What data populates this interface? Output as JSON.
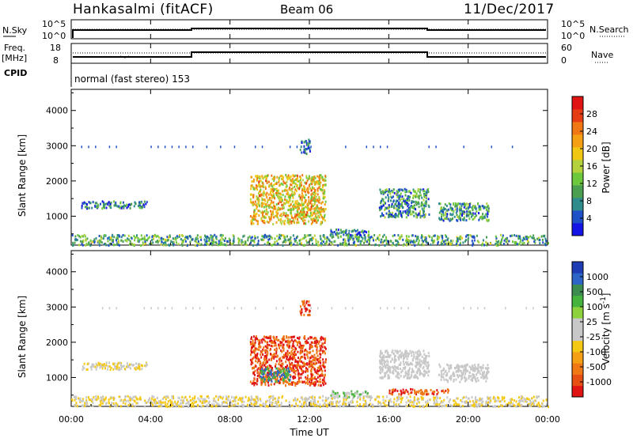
{
  "header": {
    "station": "Hankasalmi (fitACF)",
    "beam": "Beam 06",
    "date": "11/Dec/2017"
  },
  "top_panels": {
    "nsky_label": "N.Sky",
    "nsky_ticks": [
      "10^5",
      "10^0"
    ],
    "nsearch_label": "N.Search",
    "nsearch_ticks": [
      "10^5",
      "10^0"
    ],
    "freq_label": "Freq.",
    "freq_unit": "[MHz]",
    "freq_ticks": [
      "18",
      "8"
    ],
    "nave_label": "Nave",
    "nave_ticks": [
      "60",
      "0"
    ],
    "cpid_label": "CPID",
    "cpid_text": "normal (fast stereo) 153"
  },
  "colorbars": {
    "power": {
      "label": "Power [dB]",
      "ticks": [
        "28",
        "24",
        "20",
        "16",
        "12",
        "8",
        "4"
      ],
      "colors": [
        "#1414e6",
        "#1e50c8",
        "#2f8c8c",
        "#4aa050",
        "#6ec83c",
        "#b4d23c",
        "#f0c814",
        "#f5a014",
        "#f07814",
        "#e63c14",
        "#e11414"
      ]
    },
    "velocity": {
      "label": "Velocity [m s",
      "label_sup": "-1",
      "label_end": "]",
      "ticks": [
        "1000",
        "500",
        "100",
        "25",
        "-25",
        "-100",
        "-500",
        "-1000"
      ],
      "colors": [
        "#1e3cb4",
        "#2d64c8",
        "#3c8c50",
        "#46b43c",
        "#8cd23c",
        "#c8c8c8",
        "#c8c8c8",
        "#f5c814",
        "#f5a014",
        "#f07814",
        "#e65014",
        "#e11414"
      ]
    }
  },
  "xaxis": {
    "label": "Time UT",
    "ticks": [
      "00:00",
      "04:00",
      "08:00",
      "12:00",
      "16:00",
      "20:00",
      "00:00"
    ]
  },
  "chart_data": [
    {
      "type": "heatmap",
      "title": "Power",
      "ylabel": "Slant Range [km]",
      "xlabel": "",
      "x_range": [
        "00:00",
        "24:00"
      ],
      "ylim": [
        180,
        4600
      ],
      "yticks": [
        1000,
        2000,
        3000,
        4000
      ],
      "colorbar_range_dB": [
        0,
        30
      ],
      "regions": [
        {
          "t": [
            0.5,
            3.8
          ],
          "range_km": [
            1250,
            1450
          ],
          "value_dB": 6
        },
        {
          "t": [
            9.0,
            12.8
          ],
          "range_km": [
            800,
            2200
          ],
          "value_dB": 18
        },
        {
          "t": [
            13.0,
            15.0
          ],
          "range_km": [
            450,
            650
          ],
          "value_dB": 6
        },
        {
          "t": [
            15.5,
            18.0
          ],
          "range_km": [
            1000,
            1800
          ],
          "value_dB": 8
        },
        {
          "t": [
            18.5,
            21.0
          ],
          "range_km": [
            900,
            1400
          ],
          "value_dB": 8
        },
        {
          "t": [
            0.0,
            24.0
          ],
          "range_km": [
            200,
            500
          ],
          "value_dB": 10
        },
        {
          "t": [
            11.5,
            12.0
          ],
          "range_km": [
            2800,
            3200
          ],
          "value_dB": 6
        }
      ]
    },
    {
      "type": "heatmap",
      "title": "Velocity",
      "ylabel": "Slant Range [km]",
      "xlabel": "Time UT",
      "x_range": [
        "00:00",
        "24:00"
      ],
      "ylim": [
        180,
        4600
      ],
      "yticks": [
        1000,
        2000,
        3000,
        4000
      ],
      "colorbar_ticks_ms": [
        1000,
        500,
        100,
        25,
        -25,
        -100,
        -500,
        -1000
      ],
      "regions": [
        {
          "t": [
            0.5,
            3.8
          ],
          "range_km": [
            1250,
            1450
          ],
          "value_ms": -25
        },
        {
          "t": [
            9.0,
            12.8
          ],
          "range_km": [
            800,
            2200
          ],
          "value_ms": -500
        },
        {
          "t": [
            9.5,
            11.0
          ],
          "range_km": [
            900,
            1300
          ],
          "value_ms": 100
        },
        {
          "t": [
            13.0,
            15.0
          ],
          "range_km": [
            450,
            650
          ],
          "value_ms": 25
        },
        {
          "t": [
            15.5,
            18.0
          ],
          "range_km": [
            1000,
            1800
          ],
          "value_ms": 0
        },
        {
          "t": [
            16.0,
            19.0
          ],
          "range_km": [
            550,
            700
          ],
          "value_ms": -500
        },
        {
          "t": [
            18.5,
            21.0
          ],
          "range_km": [
            900,
            1400
          ],
          "value_ms": 0
        },
        {
          "t": [
            0.0,
            24.0
          ],
          "range_km": [
            200,
            500
          ],
          "value_ms": -25
        },
        {
          "t": [
            11.5,
            12.0
          ],
          "range_km": [
            2800,
            3200
          ],
          "value_ms": -500
        }
      ]
    }
  ]
}
